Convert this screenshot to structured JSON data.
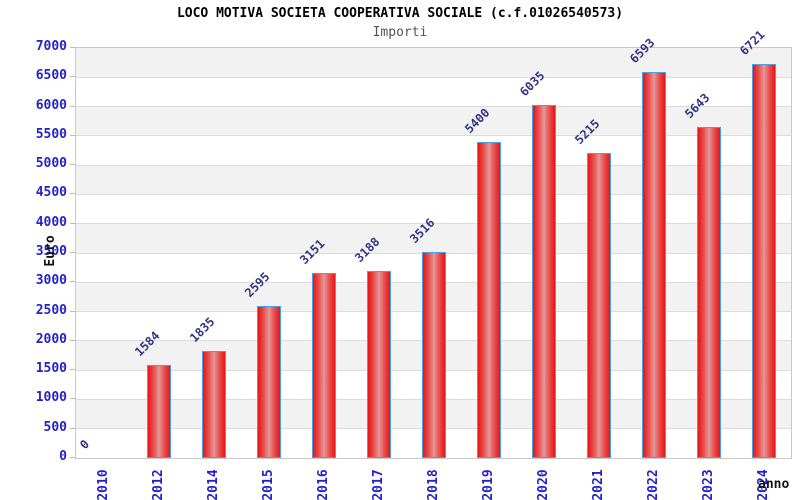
{
  "header": {
    "title": "LOCO MOTIVA SOCIETA COOPERATIVA SOCIALE (c.f.01026540573)",
    "subtitle": "Importi"
  },
  "chart_data": {
    "type": "bar",
    "title": "LOCO MOTIVA SOCIETA COOPERATIVA SOCIALE (c.f.01026540573)",
    "subtitle": "Importi",
    "xlabel": "anno",
    "ylabel": "Euro",
    "categories": [
      "2010",
      "2012",
      "2014",
      "2015",
      "2016",
      "2017",
      "2018",
      "2019",
      "2020",
      "2021",
      "2022",
      "2023",
      "2024"
    ],
    "values": [
      0,
      1584,
      1835,
      2595,
      3151,
      3188,
      3516,
      5400,
      6035,
      5215,
      6593,
      5643,
      6721
    ],
    "ylim": [
      0,
      7000
    ],
    "ytick_step": 500,
    "yticks": [
      0,
      500,
      1000,
      1500,
      2000,
      2500,
      3000,
      3500,
      4000,
      4500,
      5000,
      5500,
      6000,
      6500,
      7000
    ],
    "grid": "horizontal",
    "legend": "none",
    "colors": {
      "bar_edge": "#e51717",
      "bar_center": "#dfa2a2",
      "bar_border": "#4aa0e4",
      "axis_tick_label": "#2222cc",
      "value_label": "#333388",
      "band_gray": "#f2f2f2",
      "band_white": "#ffffff",
      "grid_line": "#dcdcdc",
      "title_color": "#000000",
      "subtitle_color": "#555555"
    }
  }
}
